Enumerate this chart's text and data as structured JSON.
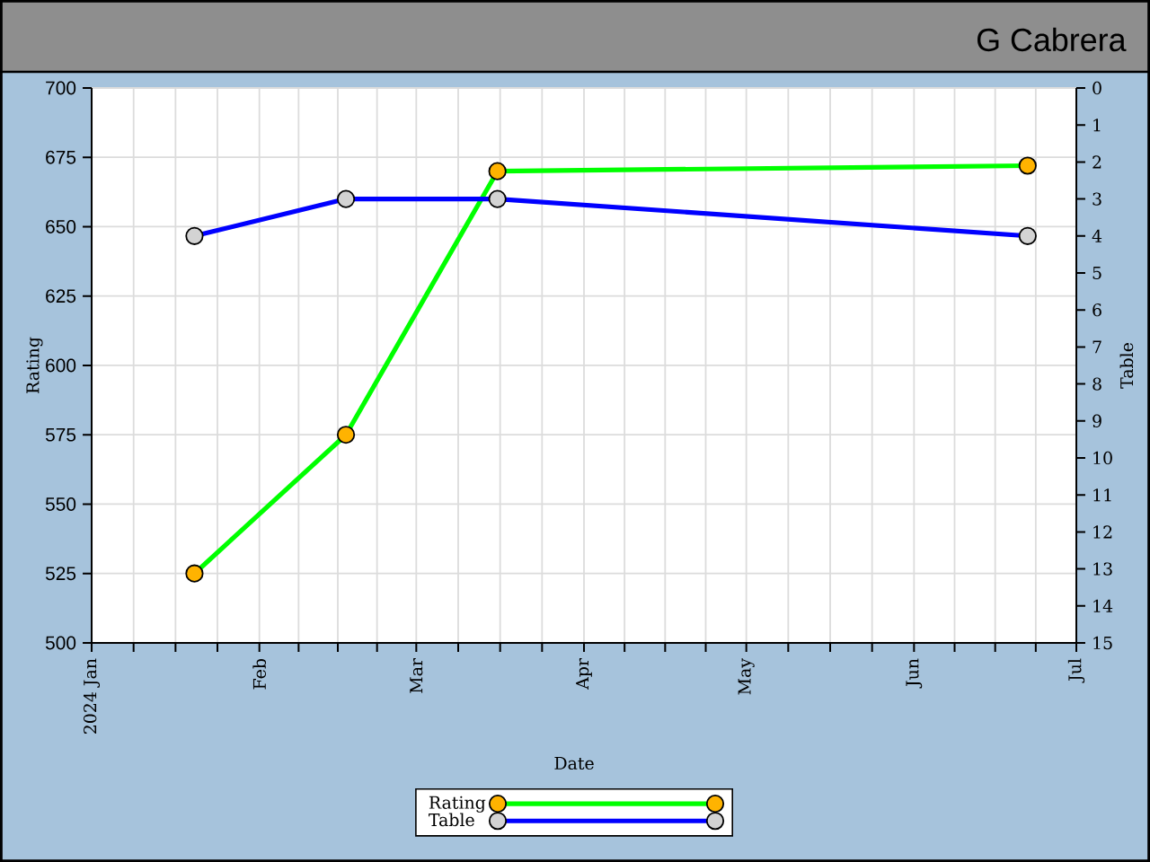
{
  "chart_data": {
    "type": "line",
    "title": "G Cabrera",
    "xlabel": "Date",
    "ylabel": "Rating",
    "y2label": "Table",
    "x": [
      "2024-01-20",
      "2024-02-17",
      "2024-03-16",
      "2024-06-22"
    ],
    "series": [
      {
        "name": "Rating",
        "color": "#00ff00",
        "values": [
          525,
          575,
          670,
          672
        ]
      },
      {
        "name": "Table",
        "color": "#0000ff",
        "values": [
          4,
          3,
          3,
          4
        ],
        "axis": "y2"
      }
    ],
    "xlim": [
      "2024-01-01",
      "2024-07-01"
    ],
    "xticks": [
      {
        "value": "2024-01-01",
        "label": "2024 Jan"
      },
      {
        "value": "2024-01-08T18:00",
        "label": null
      },
      {
        "value": "2024-01-16T12:00",
        "label": null
      },
      {
        "value": "2024-01-24T06:00",
        "label": null
      },
      {
        "value": "2024-02-01",
        "label": "Feb"
      },
      {
        "value": "2024-02-08T06:00",
        "label": null
      },
      {
        "value": "2024-02-15T12:00",
        "label": null
      },
      {
        "value": "2024-02-22T18:00",
        "label": null
      },
      {
        "value": "2024-03-01",
        "label": "Mar"
      },
      {
        "value": "2024-03-08T18:00",
        "label": null
      },
      {
        "value": "2024-03-16T12:00",
        "label": null
      },
      {
        "value": "2024-03-24T06:00",
        "label": null
      },
      {
        "value": "2024-04-01",
        "label": "Apr"
      },
      {
        "value": "2024-04-08T12:00",
        "label": null
      },
      {
        "value": "2024-04-16",
        "label": null
      },
      {
        "value": "2024-04-23T12:00",
        "label": null
      },
      {
        "value": "2024-05-01",
        "label": "May"
      },
      {
        "value": "2024-05-08T18:00",
        "label": null
      },
      {
        "value": "2024-05-16T12:00",
        "label": null
      },
      {
        "value": "2024-05-24T06:00",
        "label": null
      },
      {
        "value": "2024-06-01",
        "label": "Jun"
      },
      {
        "value": "2024-06-08T12:00",
        "label": null
      },
      {
        "value": "2024-06-16",
        "label": null
      },
      {
        "value": "2024-06-23T12:00",
        "label": null
      },
      {
        "value": "2024-07-01",
        "label": "Jul"
      }
    ],
    "ylim": [
      500,
      700
    ],
    "yticks": [
      500,
      525,
      550,
      575,
      600,
      625,
      650,
      675,
      700
    ],
    "y2lim": [
      15,
      0
    ],
    "y2ticks": [
      0,
      1,
      2,
      3,
      4,
      5,
      6,
      7,
      8,
      9,
      10,
      11,
      12,
      13,
      14,
      15
    ],
    "grid": true,
    "legend": "bottom",
    "marker": "circle",
    "line_style": "solid"
  }
}
